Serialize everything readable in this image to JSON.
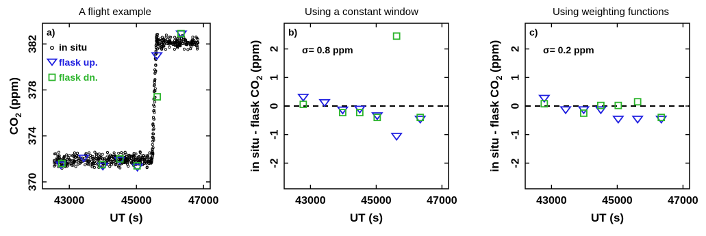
{
  "colors": {
    "insitu": "#000000",
    "flask_up": "#1f1fe0",
    "flask_dn": "#2db52d",
    "axis": "#000000"
  },
  "chart_data": [
    {
      "type": "scatter",
      "panel_label": "a)",
      "title": "A flight example",
      "xlabel": "UT (s)",
      "ylabel": "CO2 (ppm)",
      "ylabel_main": "CO",
      "ylabel_sub": "2",
      "ylabel_tail": " (ppm)",
      "xlim": [
        42200,
        47200
      ],
      "ylim": [
        369.4,
        383.8
      ],
      "x_ticks": [
        43000,
        45000,
        47000
      ],
      "y_ticks": [
        370,
        374,
        378,
        382
      ],
      "legend": {
        "position": "top-left",
        "entries": [
          "in situ",
          "flask up.",
          "flask dn."
        ]
      },
      "series": [
        {
          "name": "in situ",
          "marker": "small-circle",
          "segments": [
            {
              "x_start": 42550,
              "x_end": 45450,
              "y_center": 371.9,
              "y_spread": 0.55
            },
            {
              "x_start": 45450,
              "x_end": 45620,
              "y_start": 371.8,
              "y_end": 382.6
            },
            {
              "x_start": 45620,
              "x_end": 46850,
              "y_center": 382.1,
              "y_spread": 0.55
            }
          ]
        },
        {
          "name": "flask up.",
          "marker": "down-triangle",
          "x": [
            42750,
            43430,
            44000,
            44500,
            45030,
            45610,
            46340
          ],
          "y": [
            371.5,
            372.1,
            371.4,
            371.9,
            371.3,
            381.0,
            382.9
          ]
        },
        {
          "name": "flask dn.",
          "marker": "square",
          "x": [
            42780,
            43980,
            44510,
            45020,
            45620,
            46330
          ],
          "y": [
            371.6,
            371.5,
            372.0,
            371.4,
            377.4,
            382.9
          ]
        }
      ]
    },
    {
      "type": "scatter",
      "panel_label": "b)",
      "title": "Using a constant window",
      "xlabel": "UT (s)",
      "ylabel": "in situ - flask CO2 (ppm)",
      "ylabel_main": "in situ - flask CO",
      "ylabel_sub": "2",
      "ylabel_tail": " (ppm)",
      "annotation": "σ= 0.8 ppm",
      "xlim": [
        42200,
        47200
      ],
      "ylim": [
        -2.9,
        2.9
      ],
      "x_ticks": [
        43000,
        45000,
        47000
      ],
      "y_ticks": [
        -2,
        -1,
        0,
        1,
        2
      ],
      "reference_line": 0,
      "series": [
        {
          "name": "flask up.",
          "marker": "down-triangle",
          "x": [
            42780,
            43430,
            43980,
            44500,
            45030,
            45620,
            46340
          ],
          "y": [
            0.32,
            0.13,
            -0.13,
            -0.1,
            -0.33,
            -1.05,
            -0.45
          ]
        },
        {
          "name": "flask dn.",
          "marker": "square",
          "x": [
            42780,
            43980,
            44500,
            45030,
            45620,
            46340
          ],
          "y": [
            0.06,
            -0.23,
            -0.23,
            -0.4,
            2.45,
            -0.4
          ]
        }
      ]
    },
    {
      "type": "scatter",
      "panel_label": "c)",
      "title": "Using weighting functions",
      "xlabel": "UT (s)",
      "ylabel": "in situ - flask CO2 (ppm)",
      "ylabel_main": "in situ - flask CO",
      "ylabel_sub": "2",
      "ylabel_tail": " (ppm)",
      "annotation": "σ= 0.2 ppm",
      "xlim": [
        42200,
        47200
      ],
      "ylim": [
        -2.9,
        2.9
      ],
      "x_ticks": [
        43000,
        45000,
        47000
      ],
      "y_ticks": [
        -2,
        -1,
        0,
        1,
        2
      ],
      "reference_line": 0,
      "series": [
        {
          "name": "flask up.",
          "marker": "down-triangle",
          "x": [
            42780,
            43430,
            43980,
            44500,
            45030,
            45620,
            46340
          ],
          "y": [
            0.28,
            -0.12,
            -0.12,
            -0.12,
            -0.45,
            -0.45,
            -0.45
          ]
        },
        {
          "name": "flask dn.",
          "marker": "square",
          "x": [
            42780,
            43980,
            44500,
            45030,
            45620,
            46340
          ],
          "y": [
            0.08,
            -0.25,
            0.02,
            0.02,
            0.15,
            -0.4
          ]
        }
      ]
    }
  ]
}
